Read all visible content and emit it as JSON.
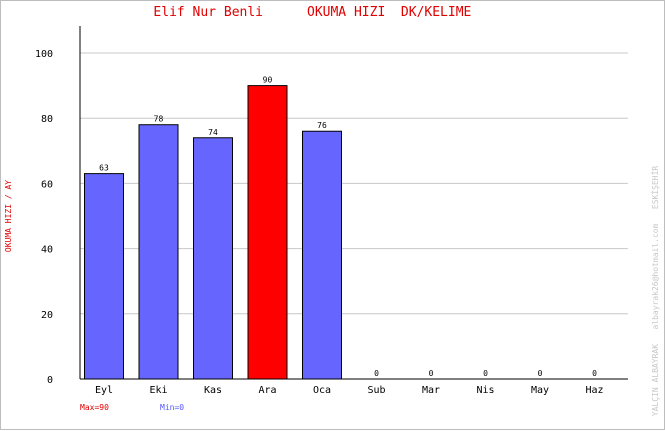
{
  "chart_data": {
    "type": "bar",
    "title_name": "Elif Nur Benli",
    "title_metric": "OKUMA HIZI  DK/KELIME",
    "ylabel": "OKUMA HIZI / AY",
    "side_note": "YALÇIN ALBAYRAK   albayrak26@hotmail.com   ESKİŞEHİR",
    "categories": [
      "Eyl",
      "Eki",
      "Kas",
      "Ara",
      "Oca",
      "Sub",
      "Mar",
      "Nis",
      "May",
      "Haz"
    ],
    "values": [
      63,
      78,
      74,
      90,
      76,
      0,
      0,
      0,
      0,
      0
    ],
    "highlight_index": 3,
    "ylim": [
      0,
      100
    ],
    "yticks": [
      0,
      20,
      40,
      60,
      80,
      100
    ],
    "grid": true,
    "colors": {
      "bar": "#6666ff",
      "highlight": "#ff0000",
      "grid": "#c8c8c8"
    },
    "legend": {
      "max": "Max=90",
      "min": "Min=0"
    }
  }
}
